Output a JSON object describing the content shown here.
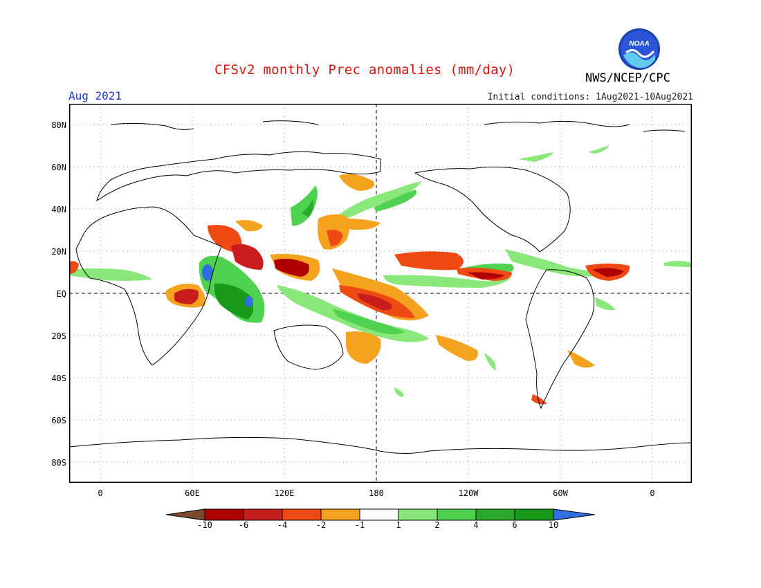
{
  "header": {
    "title": "CFSv2 monthly Prec anomalies (mm/day)",
    "agency": "NWS/NCEP/CPC",
    "month": "Aug 2021",
    "initial_conditions": "Initial conditions: 1Aug2021-10Aug2021",
    "logo_text": "NOAA"
  },
  "map": {
    "lat_labels": [
      "80N",
      "60N",
      "40N",
      "20N",
      "EQ",
      "20S",
      "40S",
      "60S",
      "80S"
    ],
    "lon_labels": [
      "0",
      "60E",
      "120E",
      "180",
      "120W",
      "60W",
      "0"
    ]
  },
  "colorbar": {
    "labels": [
      "-10",
      "-6",
      "-4",
      "-2",
      "-1",
      "1",
      "2",
      "4",
      "6",
      "10"
    ],
    "colors": [
      "#7a4a2a",
      "#b00000",
      "#c81d1d",
      "#f04a14",
      "#f5a21e",
      "#ffffff",
      "#8ae87a",
      "#4fd24f",
      "#2da82d",
      "#1a9a1a",
      "#2f6fe0"
    ]
  }
}
